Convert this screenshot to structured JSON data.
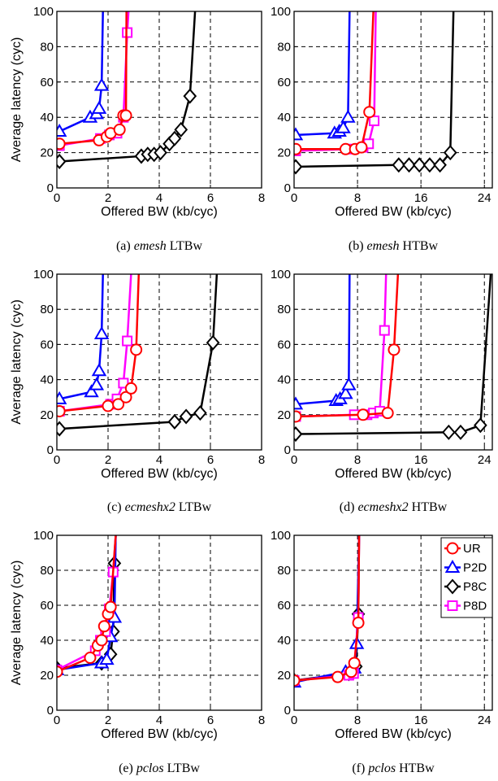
{
  "figure": {
    "panel_count": 6
  },
  "colors": {
    "UR": "#ff0000",
    "P2D": "#0000ff",
    "P8C": "#000000",
    "P8D": "#ff00ff"
  },
  "legend": {
    "placement": "top-right of panel (f)",
    "entries": [
      "UR",
      "P2D",
      "P8C",
      "P8D"
    ]
  },
  "chart_data": [
    {
      "type": "line",
      "caption_prefix": "(a) ",
      "caption_italic": "emesh",
      "caption_suffix": " LTBw",
      "xlabel": "Offered BW (kb/cyc)",
      "ylabel": "Average latency (cyc)",
      "xlim": [
        0,
        8
      ],
      "ylim": [
        0,
        100
      ],
      "xticks": [
        0,
        2,
        4,
        6,
        8
      ],
      "yticks": [
        0,
        20,
        40,
        60,
        80,
        100
      ],
      "grid": true,
      "series": [
        {
          "name": "UR",
          "x": [
            0.1,
            1.65,
            1.95,
            2.1,
            2.45,
            2.6,
            2.7,
            2.72
          ],
          "y": [
            25,
            27,
            29,
            31,
            33,
            41,
            41,
            100
          ]
        },
        {
          "name": "P2D",
          "x": [
            0.1,
            1.3,
            1.55,
            1.65,
            1.75,
            1.8
          ],
          "y": [
            32,
            40,
            42,
            45,
            58,
            100
          ]
        },
        {
          "name": "P8C",
          "x": [
            0.1,
            3.3,
            3.55,
            3.8,
            4.05,
            4.4,
            4.6,
            4.85,
            5.2,
            5.4
          ],
          "y": [
            15,
            18,
            19,
            19,
            20,
            25,
            28,
            33,
            52,
            100
          ]
        },
        {
          "name": "P8D",
          "x": [
            0.1,
            1.7,
            2.05,
            2.35,
            2.6,
            2.75,
            2.8
          ],
          "y": [
            24,
            28,
            30,
            31,
            40,
            88,
            100
          ]
        }
      ]
    },
    {
      "type": "line",
      "caption_prefix": "(b) ",
      "caption_italic": "emesh",
      "caption_suffix": " HTBw",
      "xlabel": "Offered BW (kb/cyc)",
      "ylabel": "",
      "xlim": [
        0,
        25
      ],
      "ylim": [
        0,
        100
      ],
      "xticks": [
        0,
        8,
        16,
        24
      ],
      "yticks": [
        0,
        20,
        40,
        60,
        80,
        100
      ],
      "grid": true,
      "series": [
        {
          "name": "UR",
          "x": [
            0.2,
            6.5,
            7.7,
            8.5,
            9.5,
            10.0
          ],
          "y": [
            22,
            22,
            22,
            23,
            43,
            100
          ]
        },
        {
          "name": "P2D",
          "x": [
            0.2,
            5.1,
            5.7,
            6.2,
            6.8,
            7.0
          ],
          "y": [
            30,
            31,
            32,
            34,
            40,
            100
          ]
        },
        {
          "name": "P8C",
          "x": [
            0.2,
            13.2,
            14.5,
            15.8,
            17.1,
            18.4,
            19.7,
            20.1
          ],
          "y": [
            12,
            13,
            13,
            13,
            13,
            13,
            20,
            100
          ]
        },
        {
          "name": "P8D",
          "x": [
            0.2,
            7.3,
            8.7,
            9.4,
            10.1,
            10.3
          ],
          "y": [
            21,
            22,
            23,
            25,
            38,
            100
          ]
        }
      ]
    },
    {
      "type": "line",
      "caption_prefix": "(c) ",
      "caption_italic": "ecmeshx2",
      "caption_suffix": " LTBw",
      "xlabel": "Offered BW (kb/cyc)",
      "ylabel": "Average latency (cyc)",
      "xlim": [
        0,
        8
      ],
      "ylim": [
        0,
        100
      ],
      "xticks": [
        0,
        2,
        4,
        6,
        8
      ],
      "yticks": [
        0,
        20,
        40,
        60,
        80,
        100
      ],
      "grid": true,
      "series": [
        {
          "name": "UR",
          "x": [
            0.1,
            2.0,
            2.4,
            2.7,
            2.9,
            3.1,
            3.2
          ],
          "y": [
            22,
            25,
            26,
            30,
            35,
            57,
            100
          ]
        },
        {
          "name": "P2D",
          "x": [
            0.1,
            1.35,
            1.55,
            1.65,
            1.75,
            1.8
          ],
          "y": [
            29,
            33,
            37,
            45,
            66,
            100
          ]
        },
        {
          "name": "P8C",
          "x": [
            0.1,
            4.6,
            5.05,
            5.6,
            6.1,
            6.25
          ],
          "y": [
            12,
            16,
            19,
            21,
            61,
            100
          ]
        },
        {
          "name": "P8D",
          "x": [
            0.1,
            2.1,
            2.35,
            2.6,
            2.75,
            2.9
          ],
          "y": [
            22,
            26,
            29,
            38,
            62,
            100
          ]
        }
      ]
    },
    {
      "type": "line",
      "caption_prefix": "(d) ",
      "caption_italic": "ecmeshx2",
      "caption_suffix": " HTBw",
      "xlabel": "Offered BW (kb/cyc)",
      "ylabel": "",
      "xlim": [
        0,
        25
      ],
      "ylim": [
        0,
        100
      ],
      "xticks": [
        0,
        8,
        16,
        24
      ],
      "yticks": [
        0,
        20,
        40,
        60,
        80,
        100
      ],
      "grid": true,
      "series": [
        {
          "name": "UR",
          "x": [
            0.2,
            8.7,
            11.8,
            12.6,
            13.1
          ],
          "y": [
            19,
            20,
            21,
            57,
            100
          ]
        },
        {
          "name": "P2D",
          "x": [
            0.2,
            5.3,
            5.8,
            6.5,
            6.9,
            7.0
          ],
          "y": [
            26,
            28,
            29,
            32,
            37,
            100
          ]
        },
        {
          "name": "P8C",
          "x": [
            0.2,
            19.5,
            21.0,
            23.5,
            24.8
          ],
          "y": [
            9,
            10,
            10,
            14,
            100
          ]
        },
        {
          "name": "P8D",
          "x": [
            0.2,
            7.6,
            9.2,
            10.0,
            10.8,
            11.4,
            11.6
          ],
          "y": [
            19,
            20,
            20,
            21,
            22,
            68,
            100
          ]
        }
      ]
    },
    {
      "type": "line",
      "caption_prefix": "(e) ",
      "caption_italic": "pclos",
      "caption_suffix": " LTBw",
      "xlabel": "Offered BW (kb/cyc)",
      "ylabel": "Average latency (cyc)",
      "xlim": [
        0,
        8
      ],
      "ylim": [
        0,
        100
      ],
      "xticks": [
        0,
        2,
        4,
        6,
        8
      ],
      "yticks": [
        0,
        20,
        40,
        60,
        80,
        100
      ],
      "grid": true,
      "series": [
        {
          "name": "UR",
          "x": [
            0.0,
            1.3,
            1.6,
            1.75,
            1.85,
            2.0,
            2.1,
            2.3
          ],
          "y": [
            22,
            30,
            37,
            40,
            48,
            55,
            59,
            100
          ]
        },
        {
          "name": "P2D",
          "x": [
            0.0,
            1.75,
            1.95,
            2.1,
            2.25,
            2.3
          ],
          "y": [
            23,
            27,
            29,
            42,
            53,
            100
          ]
        },
        {
          "name": "P8C",
          "x": [
            0.0,
            1.75,
            2.1,
            2.2,
            2.25,
            2.3
          ],
          "y": [
            24,
            27,
            32,
            45,
            84,
            100
          ]
        },
        {
          "name": "P8D",
          "x": [
            0.0,
            1.5,
            1.7,
            1.9,
            2.05,
            2.2,
            2.3
          ],
          "y": [
            23,
            34,
            40,
            45,
            58,
            79,
            100
          ]
        }
      ]
    },
    {
      "type": "line",
      "caption_prefix": "(f) ",
      "caption_italic": "pclos",
      "caption_suffix": " HTBw",
      "xlabel": "Offered BW (kb/cyc)",
      "ylabel": "",
      "xlim": [
        0,
        25
      ],
      "ylim": [
        0,
        100
      ],
      "xticks": [
        0,
        8,
        16,
        24
      ],
      "yticks": [
        0,
        20,
        40,
        60,
        80,
        100
      ],
      "grid": true,
      "series": [
        {
          "name": "UR",
          "x": [
            0.0,
            5.5,
            7.2,
            7.6,
            8.1,
            8.2
          ],
          "y": [
            17,
            19,
            22,
            27,
            50,
            100
          ]
        },
        {
          "name": "P2D",
          "x": [
            0.0,
            6.5,
            7.6,
            7.9,
            8.2
          ],
          "y": [
            16,
            22,
            24,
            38,
            100
          ]
        },
        {
          "name": "P8C",
          "x": [
            0.0,
            6.9,
            7.5,
            7.8,
            8.1,
            8.2
          ],
          "y": [
            17,
            21,
            22,
            25,
            55,
            100
          ]
        },
        {
          "name": "P8D",
          "x": [
            0.0,
            6.9,
            7.5,
            8.1,
            8.2
          ],
          "y": [
            17,
            20,
            21,
            53,
            100
          ]
        }
      ]
    }
  ]
}
